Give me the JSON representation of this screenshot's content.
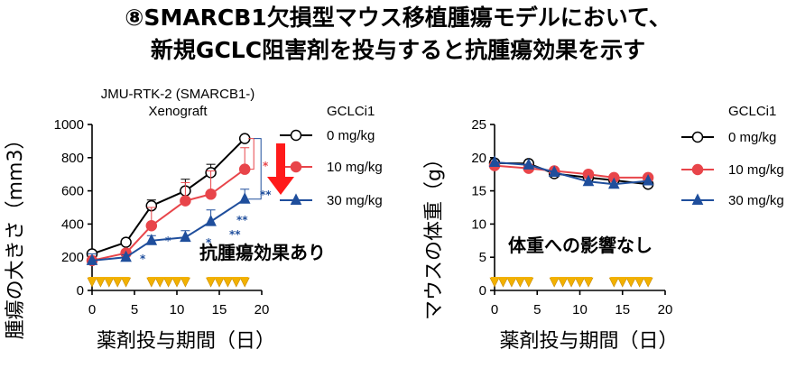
{
  "title": {
    "line1": "⑧SMARCB1欠損型マウス移植腫瘍モデルにおいて、",
    "line2": "新規GCLC阻害剤を投与すると抗腫瘍効果を示す"
  },
  "colors": {
    "black": "#000000",
    "red": "#e8454a",
    "blue": "#1f4e9c",
    "dose_arrow": "#e8e8e8",
    "dosing_marker": "#f2b100"
  },
  "chart_data": [
    {
      "type": "line",
      "subtitle_line1": "JMU-RTK-2 (SMARCB1-)",
      "subtitle_line2": "Xenograft",
      "ylabel": "腫瘍の大きさ（mm3）",
      "xlabel": "薬剤投与期間（日）",
      "xlim": [
        0,
        20
      ],
      "ylim": [
        0,
        1000
      ],
      "xticks": [
        "0",
        "5",
        "10",
        "15",
        "20"
      ],
      "yticks": [
        "0",
        "200",
        "400",
        "600",
        "800",
        "1000"
      ],
      "legend_title": "GCLCi1",
      "annotation": "抗腫瘍効果あり",
      "dosing_days": [
        0,
        1,
        2,
        3,
        4,
        7,
        8,
        9,
        10,
        11,
        14,
        15,
        16,
        17,
        18
      ],
      "x": [
        0,
        4,
        7,
        11,
        14,
        18
      ],
      "series": [
        {
          "name": "0 mg/kg",
          "color": "#000000",
          "marker": "circle-open",
          "values": [
            220,
            290,
            510,
            600,
            710,
            915
          ],
          "err": [
            15,
            20,
            35,
            70,
            50,
            0
          ]
        },
        {
          "name": "10 mg/kg",
          "color": "#e8454a",
          "marker": "circle",
          "values": [
            180,
            225,
            390,
            540,
            580,
            730
          ],
          "err": [
            20,
            20,
            110,
            110,
            140,
            130
          ]
        },
        {
          "name": "30 mg/kg",
          "color": "#1f4e9c",
          "marker": "triangle",
          "values": [
            180,
            200,
            300,
            320,
            415,
            550
          ],
          "err": [
            40,
            15,
            30,
            40,
            70,
            60
          ]
        }
      ],
      "significance": [
        {
          "x": 4,
          "label": "*",
          "color": "#1f4e9c"
        },
        {
          "x": 7,
          "label": "*",
          "color": "#1f4e9c"
        },
        {
          "x": 11,
          "label": "*",
          "color": "#1f4e9c"
        },
        {
          "x": 14,
          "label": "**",
          "color": "#1f4e9c"
        },
        {
          "x": 18,
          "label": "**",
          "color": "#1f4e9c"
        },
        {
          "x": 18,
          "label": "*",
          "color": "#e8454a"
        },
        {
          "x": 18,
          "label": "**",
          "color": "#1f4e9c"
        }
      ]
    },
    {
      "type": "line",
      "ylabel": "マウスの体重（g）",
      "xlabel": "薬剤投与期間（日）",
      "xlim": [
        0,
        20
      ],
      "ylim": [
        0,
        25
      ],
      "xticks": [
        "0",
        "5",
        "10",
        "15",
        "20"
      ],
      "yticks": [
        "0",
        "5",
        "10",
        "15",
        "20",
        "25"
      ],
      "legend_title": "GCLCi1",
      "annotation": "体重への影響なし",
      "dosing_days": [
        0,
        1,
        2,
        3,
        4,
        7,
        8,
        9,
        10,
        11,
        14,
        15,
        16,
        17,
        18
      ],
      "x": [
        0,
        4,
        7,
        11,
        14,
        18
      ],
      "series": [
        {
          "name": "0 mg/kg",
          "color": "#000000",
          "marker": "circle-open",
          "values": [
            19.2,
            19.1,
            17.6,
            17.0,
            16.6,
            16.0
          ]
        },
        {
          "name": "10 mg/kg",
          "color": "#e8454a",
          "marker": "circle",
          "values": [
            18.8,
            18.4,
            18.0,
            17.5,
            17.0,
            17.0
          ]
        },
        {
          "name": "30 mg/kg",
          "color": "#1f4e9c",
          "marker": "triangle",
          "values": [
            19.3,
            18.9,
            17.8,
            16.4,
            16.0,
            16.5
          ]
        }
      ]
    }
  ]
}
